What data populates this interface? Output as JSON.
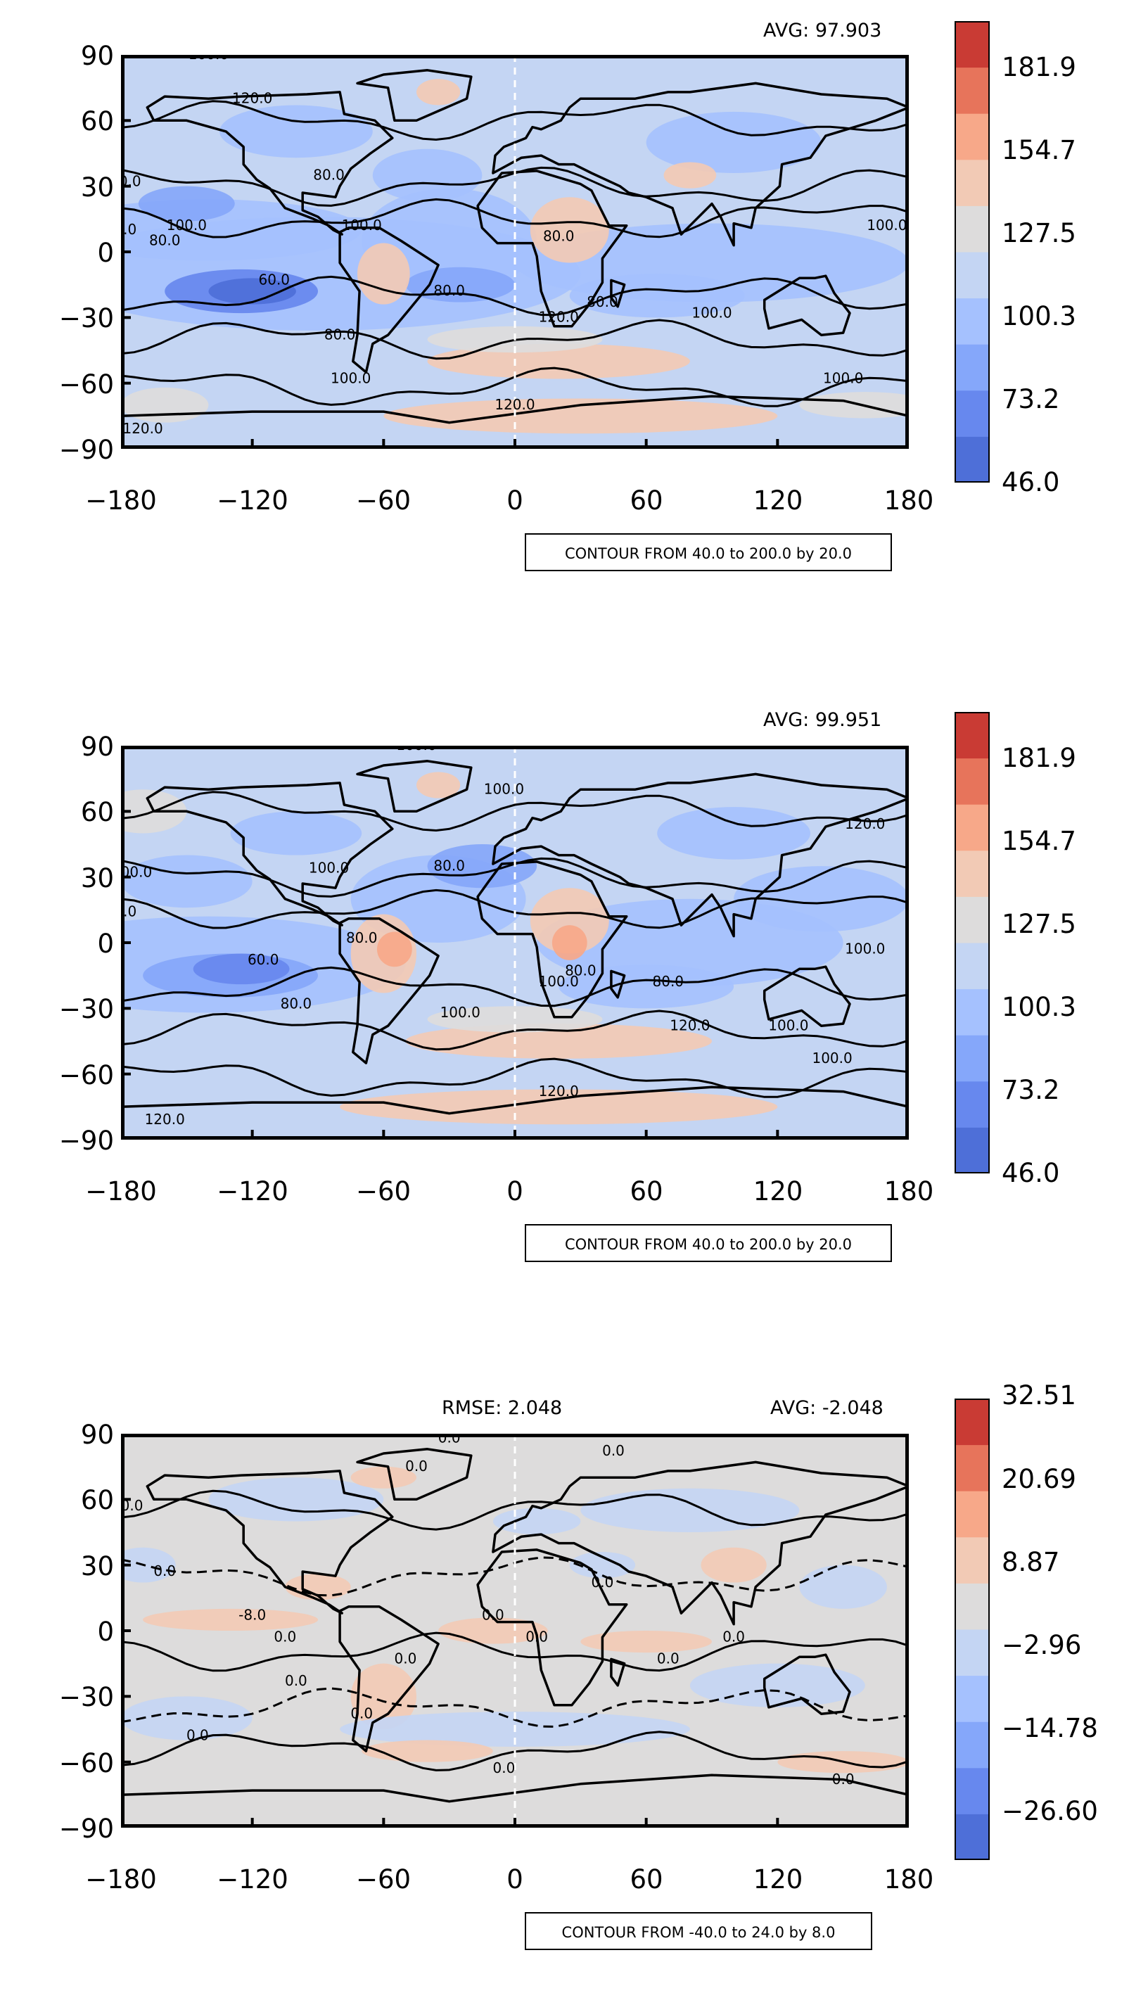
{
  "panels": [
    {
      "avg": "AVG: 97.903",
      "rmse": "",
      "note": "CONTOUR FROM 40.0 to 200.0 by 20.0",
      "yticks": [
        "90",
        "60",
        "30",
        "0",
        "−30",
        "−60",
        "−90"
      ],
      "xticks": [
        "−180",
        "−120",
        "−60",
        "0",
        "60",
        "120",
        "180"
      ],
      "colorbar_labels": [
        "181.9",
        "154.7",
        "127.5",
        "100.3",
        "73.2",
        "46.0"
      ],
      "contour_labels": [
        "100.0",
        "120.0",
        "100.0",
        "80.0",
        "100.0",
        "80.0",
        "80.0",
        "60.0",
        "80.0",
        "80.0",
        "100.0",
        "80.0",
        "100.0",
        "120.0",
        "100.0",
        "120.0",
        "120.0",
        "100.0",
        "80.0",
        "100.0"
      ]
    },
    {
      "avg": "AVG: 99.951",
      "rmse": "",
      "note": "CONTOUR FROM 40.0 to 200.0 by 20.0",
      "yticks": [
        "90",
        "60",
        "30",
        "0",
        "−30",
        "−60",
        "−90"
      ],
      "xticks": [
        "−180",
        "−120",
        "−60",
        "0",
        "60",
        "120",
        "180"
      ],
      "colorbar_labels": [
        "181.9",
        "154.7",
        "127.5",
        "100.3",
        "73.2",
        "46.0"
      ],
      "contour_labels": [
        "100.0",
        "100.0",
        "80.0",
        "100.0",
        "80.0",
        "80.0",
        "60.0",
        "80.0",
        "100.0",
        "100.0",
        "120.0",
        "100.0",
        "80.0",
        "80.0",
        "100.0",
        "120.0",
        "100.0",
        "120.0",
        "120.0",
        "100.0"
      ]
    },
    {
      "avg": "AVG: -2.048",
      "rmse": "RMSE: 2.048",
      "note": "CONTOUR FROM -40.0 to 24.0 by 8.0",
      "yticks": [
        "90",
        "60",
        "30",
        "0",
        "−30",
        "−60",
        "−90"
      ],
      "xticks": [
        "−180",
        "−120",
        "−60",
        "0",
        "60",
        "120",
        "180"
      ],
      "colorbar_labels": [
        "32.51",
        "20.69",
        "8.87",
        "−2.96",
        "−14.78",
        "−26.60"
      ],
      "contour_labels": [
        "0.0",
        "0.0",
        "0.0",
        "0.0",
        "0.0",
        "-8.0",
        "0.0",
        "0.0",
        "0.0",
        "0.0",
        "0.0",
        "0.0",
        "0.0",
        "0.0",
        "0.0",
        "0.0",
        "0.0",
        "0.0"
      ]
    }
  ],
  "colors": {
    "cmap": [
      "#4e6fd8",
      "#6788ee",
      "#85a7fa",
      "#a5c1fe",
      "#c4d5f3",
      "#dddcdc",
      "#f2cab5",
      "#f7a889",
      "#e7745b",
      "#c93b34"
    ],
    "frame": "#000000"
  }
}
